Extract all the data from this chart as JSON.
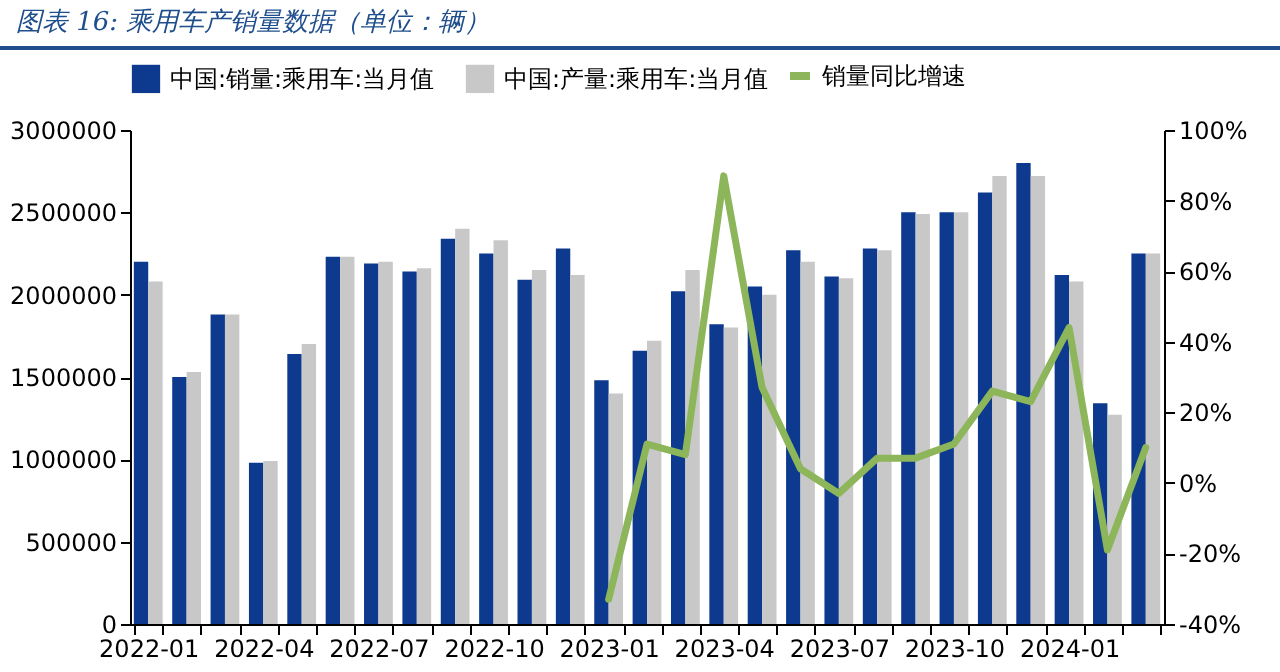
{
  "chart_data": {
    "type": "bar",
    "title": "图表 16:  乘用车产销量数据（单位：辆）",
    "categories": [
      "2022-01",
      null,
      null,
      "2022-04",
      null,
      null,
      "2022-07",
      null,
      null,
      "2022-10",
      null,
      null,
      "2023-01",
      null,
      null,
      "2023-04",
      null,
      null,
      "2023-07",
      null,
      null,
      "2023-10",
      null,
      null,
      "2024-01",
      null,
      null
    ],
    "series": [
      {
        "name": "中国:销量:乘用车:当月值",
        "color": "#0d3a8f",
        "values": [
          2200000,
          1500000,
          1880000,
          980000,
          1640000,
          2230000,
          2190000,
          2140000,
          2340000,
          2250000,
          2090000,
          2280000,
          1480000,
          1660000,
          2020000,
          1820000,
          2050000,
          2270000,
          2110000,
          2280000,
          2500000,
          2500000,
          2620000,
          2800000,
          2120000,
          1340000,
          2250000
        ]
      },
      {
        "name": "中国:产量:乘用车:当月值",
        "color": "#c8c8c8",
        "values": [
          2080000,
          1530000,
          1880000,
          990000,
          1700000,
          2230000,
          2200000,
          2160000,
          2400000,
          2330000,
          2150000,
          2120000,
          1400000,
          1720000,
          2150000,
          1800000,
          2000000,
          2200000,
          2100000,
          2270000,
          2490000,
          2500000,
          2720000,
          2720000,
          2080000,
          1270000,
          2250000
        ]
      },
      {
        "name": "销量同比增速",
        "type": "line",
        "axis": "y2",
        "color": "#8db55a",
        "values": [
          null,
          null,
          null,
          null,
          null,
          null,
          null,
          null,
          null,
          null,
          null,
          null,
          -33,
          11,
          8,
          87,
          27,
          4,
          -3,
          7,
          7,
          11,
          26,
          23,
          44,
          -19,
          10
        ]
      }
    ],
    "ylim": [
      0,
      3000000
    ],
    "yticks": [
      0,
      500000,
      1000000,
      1500000,
      2000000,
      2500000,
      3000000
    ],
    "y2lim": [
      -40,
      100
    ],
    "y2ticks": [
      {
        "value": -40,
        "label": "-40%"
      },
      {
        "value": -20,
        "label": "-20%"
      },
      {
        "value": 0,
        "label": "0%"
      },
      {
        "value": 20,
        "label": "20%"
      },
      {
        "value": 40,
        "label": "40%"
      },
      {
        "value": 60,
        "label": "60%"
      },
      {
        "value": 80,
        "label": "80%"
      },
      {
        "value": 100,
        "label": "100%"
      }
    ],
    "grid": false,
    "legend": "top"
  }
}
